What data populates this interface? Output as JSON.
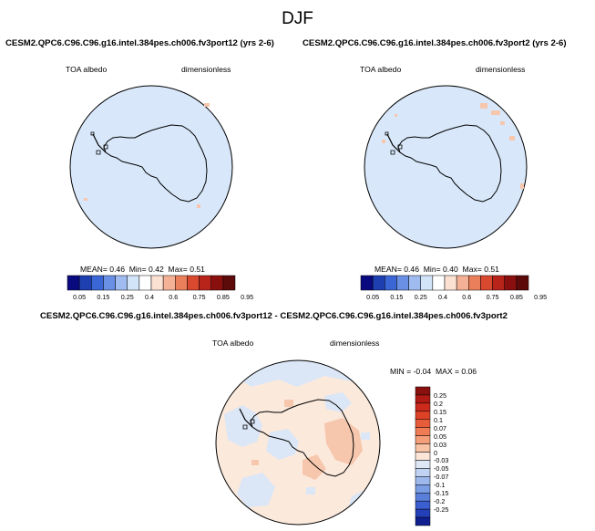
{
  "page_title": "DJF",
  "panels": [
    {
      "case_title": "CESM2.QPC6.C96.C96.g16.intel.384pes.ch006.fv3port12 (yrs 2-6)",
      "variable": "TOA albedo",
      "units": "dimensionless",
      "stats": {
        "mean_label": "MEAN=",
        "mean": "0.46",
        "min_label": "Min=",
        "min": "0.42",
        "max_label": "Max=",
        "max": "0.51"
      }
    },
    {
      "case_title": "CESM2.QPC6.C96.C96.g16.intel.384pes.ch006.fv3port2 (yrs 2-6)",
      "variable": "TOA albedo",
      "units": "dimensionless",
      "stats": {
        "mean_label": "MEAN=",
        "mean": "0.46",
        "min_label": "Min=",
        "min": "0.40",
        "max_label": "Max=",
        "max": "0.51"
      }
    }
  ],
  "abs_colorbar": {
    "labels": [
      "0.05",
      "0.15",
      "0.25",
      "0.4",
      "0.6",
      "0.75",
      "0.85",
      "0.95"
    ],
    "colors": [
      "#0a0a80",
      "#1d3fb0",
      "#3a66d6",
      "#6a90e6",
      "#9fbbf0",
      "#d2e4f8",
      "#ffffff",
      "#fbe1d2",
      "#f4b196",
      "#ea7f5c",
      "#d9492f",
      "#b8231a",
      "#8a0f0f",
      "#5c0a0a"
    ]
  },
  "diff_panel": {
    "title": "CESM2.QPC6.C96.C96.g16.intel.384pes.ch006.fv3port12 - CESM2.QPC6.C96.C96.g16.intel.384pes.ch006.fv3port2",
    "variable": "TOA albedo",
    "units": "dimensionless",
    "stats": {
      "min_label": "MIN =",
      "min": "-0.04",
      "max_label": "MAX =",
      "max": "0.06"
    }
  },
  "diff_colorbar": {
    "labels": [
      "0.25",
      "0.2",
      "0.15",
      "0.1",
      "0.07",
      "0.05",
      "0.03",
      "0",
      "-0.03",
      "-0.05",
      "-0.07",
      "-0.1",
      "-0.15",
      "-0.2",
      "-0.25"
    ],
    "colors": [
      "#8a0f0f",
      "#b01a14",
      "#cc2a1c",
      "#dd4227",
      "#e75c3a",
      "#ef7c55",
      "#f49f79",
      "#f9c4a6",
      "#fbe6d8",
      "#dde7f6",
      "#c0d3f2",
      "#9db9ec",
      "#7a9de4",
      "#5a7fdb",
      "#3b5fd0",
      "#2440b8",
      "#0f1f90"
    ]
  },
  "colors": {
    "abs_map_fill": "#d8e8fa",
    "diff_map_fill": "#fbe9dc",
    "positive_anomaly": "#f6c7ad",
    "negative_anomaly": "#dbe6f7"
  }
}
